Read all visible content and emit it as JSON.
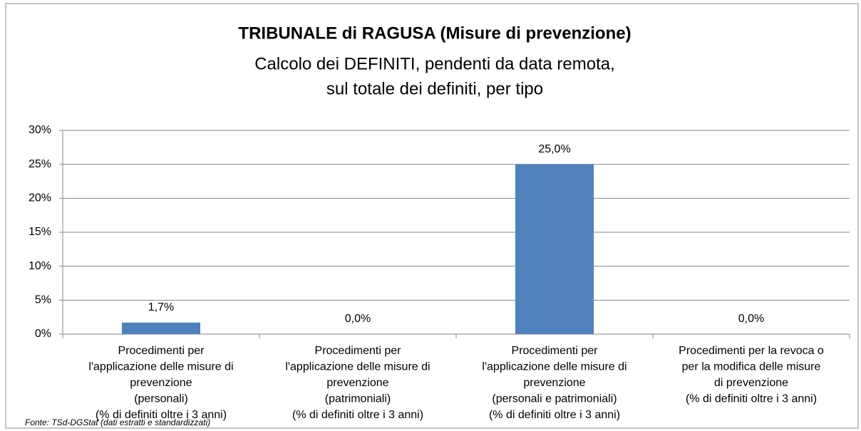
{
  "chart_data": {
    "type": "bar",
    "title": "TRIBUNALE di RAGUSA (Misure di prevenzione)",
    "subtitle": [
      "Calcolo dei DEFINITI, pendenti da data remota,",
      "sul totale dei definiti, per tipo"
    ],
    "categories": [
      [
        "Procedimenti per",
        "l'applicazione delle misure di",
        "prevenzione",
        "(personali)",
        "(% di definiti oltre i 3 anni)"
      ],
      [
        "Procedimenti per",
        "l'applicazione delle misure di",
        "prevenzione",
        "(patrimoniali)",
        "(% di definiti oltre i 3 anni)"
      ],
      [
        "Procedimenti per",
        "l'applicazione delle misure di",
        "prevenzione",
        "(personali e patrimoniali)",
        "(% di definiti oltre i 3 anni)"
      ],
      [
        "Procedimenti per la revoca o",
        "per la modifica delle misure",
        "di prevenzione",
        "(% di definiti oltre i 3 anni)"
      ]
    ],
    "values": [
      1.7,
      0,
      25,
      0
    ],
    "value_labels": [
      "1,7%",
      "0,0%",
      "25,0%",
      "0,0%"
    ],
    "color": "#4f81bd",
    "ylim": [
      0,
      30
    ],
    "yticks": [
      {
        "value": 0,
        "label": "0%"
      },
      {
        "value": 5,
        "label": "5%"
      },
      {
        "value": 10,
        "label": "10%"
      },
      {
        "value": 15,
        "label": "15%"
      },
      {
        "value": 20,
        "label": "20%"
      },
      {
        "value": 25,
        "label": "25%"
      },
      {
        "value": 30,
        "label": "30%"
      }
    ],
    "grid": true,
    "source": "Fonte: TSd-DGStat (dati estratti e standardizzati)"
  }
}
